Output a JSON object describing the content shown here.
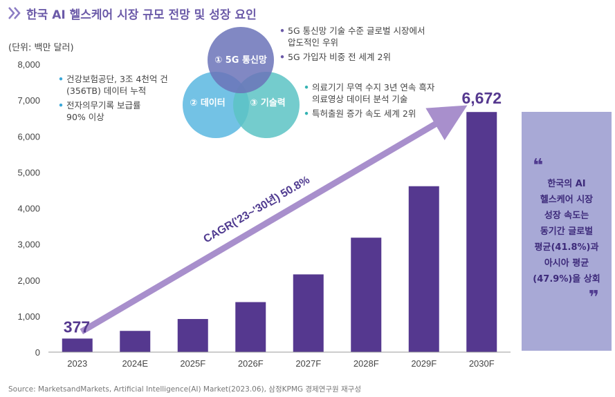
{
  "header": {
    "title": "한국 AI 헬스케어 시장 규모 전망 및 성장 요인",
    "unit": "(단위: 백만 달러)"
  },
  "colors": {
    "bar": "#55388f",
    "arrow": "#a88fcc",
    "accent": "#6b5aa8",
    "circle_5g": "#6b73b8",
    "circle_data": "#5ab7e0",
    "circle_tech": "#5cc3c4",
    "side_box": "#a8a9d6"
  },
  "chart_data": {
    "type": "bar",
    "categories": [
      "2023",
      "2024E",
      "2025F",
      "2026F",
      "2027F",
      "2028F",
      "2029F",
      "2030F"
    ],
    "values": [
      377,
      590,
      920,
      1390,
      2160,
      3180,
      4610,
      6672
    ],
    "data_labels": {
      "first": "377",
      "last": "6,672"
    },
    "yticks": [
      "0",
      "1,000",
      "2,000",
      "3,000",
      "4,000",
      "5,000",
      "6,000",
      "7,000",
      "8,000"
    ],
    "ylim": [
      0,
      8000
    ],
    "grid": false,
    "annotation": "CAGR('23~'30년) 50.8%"
  },
  "venn": {
    "top": "① 5G 통신망",
    "left": "② 데이터",
    "right": "③ 기술력"
  },
  "notes": {
    "left": [
      "건강보험공단, 3조 4천억 건\n(356TB) 데이터 누적",
      "전자의무기록 보급률\n90% 이상"
    ],
    "right_top": [
      "5G 통신망 기술 수준 글로벌 시장에서\n압도적인 우위",
      "5G 가입자 비중 전 세계 2위"
    ],
    "right_bottom": [
      "의료기기 무역 수지 3년 연속 흑자\n의료영상 데이터 분석 기술",
      "특허출원 증가 속도 세계 2위"
    ]
  },
  "side_box": {
    "open_quote": "❝",
    "close_quote": "❞",
    "text": "한국의 AI\n헬스케어 시장\n성장 속도는\n동기간 글로벌\n평균(41.8%)과\n아시아 평균\n(47.9%)을 상회"
  },
  "source": "Source: MarketsandMarkets, Artificial Intelligence(AI) Market(2023.06), 삼정KPMG 경제연구원 재구성"
}
